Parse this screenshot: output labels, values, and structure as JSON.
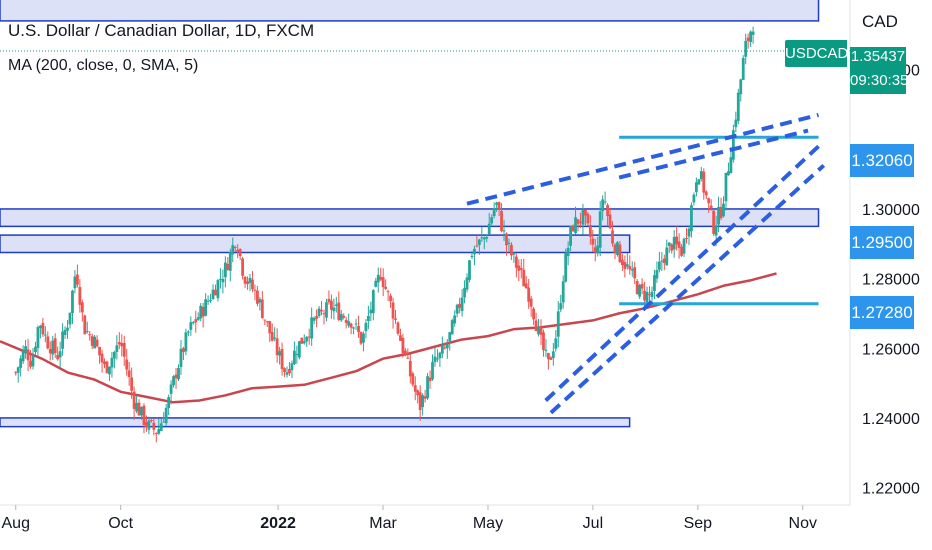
{
  "header": {
    "title": "U.S. Dollar / Canadian Dollar, 1D, FXCM",
    "indicator": "MA (200, close, 0, SMA, 5)"
  },
  "price_axis": {
    "unit": "CAD",
    "pair_tag": "USDCAD",
    "last_price": "1.35437",
    "countdown": "09:30:35",
    "level_labels": [
      "1.32060",
      "1.29500",
      "1.27280"
    ]
  },
  "colors": {
    "bull": "#26a69a",
    "bear": "#ef5350",
    "ma": "#c2323a",
    "zone_fill": "#d6dcf7",
    "zone_border": "#1e3dc0",
    "trend_dash": "#2c5ee0",
    "level_line": "#27a5d6",
    "level_tag": "#2d95ec",
    "last_tag": "#0a9981"
  },
  "chart_data": {
    "type": "candlestick",
    "title": "U.S. Dollar / Canadian Dollar, 1D, FXCM",
    "ylim": [
      1.215,
      1.36
    ],
    "y_ticks": [
      "1.22000",
      "1.24000",
      "1.26000",
      "1.28000",
      "1.30000",
      "1.34000"
    ],
    "x_ticks": [
      "Aug",
      "Oct",
      "2022",
      "Mar",
      "May",
      "Jul",
      "Sep",
      "Nov"
    ],
    "x_tick_months": [
      0,
      2,
      5,
      7,
      9,
      11,
      13,
      15
    ],
    "x_range_months": [
      -0.3,
      15.9
    ],
    "close_anchors": [
      [
        0.0,
        1.253
      ],
      [
        0.18,
        1.26
      ],
      [
        0.3,
        1.256
      ],
      [
        0.45,
        1.268
      ],
      [
        0.6,
        1.262
      ],
      [
        0.8,
        1.258
      ],
      [
        1.0,
        1.268
      ],
      [
        1.15,
        1.283
      ],
      [
        1.3,
        1.266
      ],
      [
        1.5,
        1.262
      ],
      [
        1.7,
        1.254
      ],
      [
        2.0,
        1.262
      ],
      [
        2.25,
        1.245
      ],
      [
        2.5,
        1.238
      ],
      [
        2.7,
        1.236
      ],
      [
        2.9,
        1.244
      ],
      [
        3.05,
        1.253
      ],
      [
        3.3,
        1.265
      ],
      [
        3.6,
        1.272
      ],
      [
        4.0,
        1.283
      ],
      [
        4.2,
        1.292
      ],
      [
        4.35,
        1.281
      ],
      [
        4.6,
        1.275
      ],
      [
        4.9,
        1.262
      ],
      [
        5.15,
        1.253
      ],
      [
        5.35,
        1.26
      ],
      [
        5.7,
        1.268
      ],
      [
        6.0,
        1.272
      ],
      [
        6.4,
        1.268
      ],
      [
        6.6,
        1.262
      ],
      [
        6.95,
        1.282
      ],
      [
        7.2,
        1.27
      ],
      [
        7.45,
        1.256
      ],
      [
        7.7,
        1.243
      ],
      [
        7.95,
        1.255
      ],
      [
        8.2,
        1.26
      ],
      [
        8.45,
        1.272
      ],
      [
        8.7,
        1.288
      ],
      [
        8.95,
        1.292
      ],
      [
        9.15,
        1.302
      ],
      [
        9.35,
        1.29
      ],
      [
        9.6,
        1.282
      ],
      [
        9.8,
        1.275
      ],
      [
        10.0,
        1.262
      ],
      [
        10.15,
        1.255
      ],
      [
        10.3,
        1.264
      ],
      [
        10.45,
        1.283
      ],
      [
        10.6,
        1.295
      ],
      [
        10.8,
        1.298
      ],
      [
        10.95,
        1.292
      ],
      [
        11.05,
        1.286
      ],
      [
        11.2,
        1.305
      ],
      [
        11.35,
        1.292
      ],
      [
        11.5,
        1.287
      ],
      [
        11.7,
        1.282
      ],
      [
        11.9,
        1.276
      ],
      [
        12.1,
        1.275
      ],
      [
        12.3,
        1.285
      ],
      [
        12.5,
        1.29
      ],
      [
        12.7,
        1.288
      ],
      [
        12.85,
        1.298
      ],
      [
        13.0,
        1.312
      ],
      [
        13.15,
        1.304
      ],
      [
        13.3,
        1.295
      ],
      [
        13.45,
        1.3
      ],
      [
        13.6,
        1.314
      ],
      [
        13.75,
        1.33
      ],
      [
        13.9,
        1.346
      ],
      [
        14.02,
        1.352
      ],
      [
        14.08,
        1.3545
      ]
    ],
    "moving_average": {
      "name": "MA (200, close, 0, SMA, 5)",
      "points": [
        [
          -0.3,
          1.262
        ],
        [
          0.5,
          1.257
        ],
        [
          1.0,
          1.253
        ],
        [
          1.5,
          1.251
        ],
        [
          2.0,
          1.2475
        ],
        [
          2.5,
          1.246
        ],
        [
          3.0,
          1.2445
        ],
        [
          3.5,
          1.245
        ],
        [
          4.0,
          1.2465
        ],
        [
          4.5,
          1.2485
        ],
        [
          5.0,
          1.249
        ],
        [
          5.5,
          1.2495
        ],
        [
          6.0,
          1.2515
        ],
        [
          6.5,
          1.2535
        ],
        [
          7.0,
          1.257
        ],
        [
          7.5,
          1.2585
        ],
        [
          8.0,
          1.2605
        ],
        [
          8.5,
          1.2625
        ],
        [
          9.0,
          1.2635
        ],
        [
          9.5,
          1.2655
        ],
        [
          10.0,
          1.266
        ],
        [
          10.5,
          1.267
        ],
        [
          11.0,
          1.268
        ],
        [
          11.5,
          1.27
        ],
        [
          12.0,
          1.2715
        ],
        [
          12.5,
          1.2735
        ],
        [
          13.0,
          1.2755
        ],
        [
          13.5,
          1.278
        ],
        [
          14.0,
          1.2795
        ],
        [
          14.5,
          1.2815
        ]
      ]
    },
    "horizontal_zones": [
      {
        "x_start": -0.3,
        "x_end": 15.3,
        "y_low": 1.354,
        "y_high": 1.365
      },
      {
        "x_start": -0.3,
        "x_end": 15.3,
        "y_low": 1.295,
        "y_high": 1.3
      },
      {
        "x_start": -0.3,
        "x_end": 11.7,
        "y_low": 1.2875,
        "y_high": 1.2925
      },
      {
        "x_start": -0.3,
        "x_end": 11.7,
        "y_low": 1.2375,
        "y_high": 1.24
      }
    ],
    "horizontal_levels": [
      {
        "x_start": 11.5,
        "x_end": 15.3,
        "y": 1.3206
      },
      {
        "x_start": 11.5,
        "x_end": 15.3,
        "y": 1.2728
      }
    ],
    "trend_lines": [
      {
        "x1": 8.6,
        "y1": 1.3015,
        "x2": 15.3,
        "y2": 1.327
      },
      {
        "x1": 11.5,
        "y1": 1.309,
        "x2": 15.1,
        "y2": 1.3225
      },
      {
        "x1": 10.1,
        "y1": 1.245,
        "x2": 15.3,
        "y2": 1.318
      },
      {
        "x1": 10.2,
        "y1": 1.2415,
        "x2": 15.4,
        "y2": 1.3125
      }
    ]
  }
}
